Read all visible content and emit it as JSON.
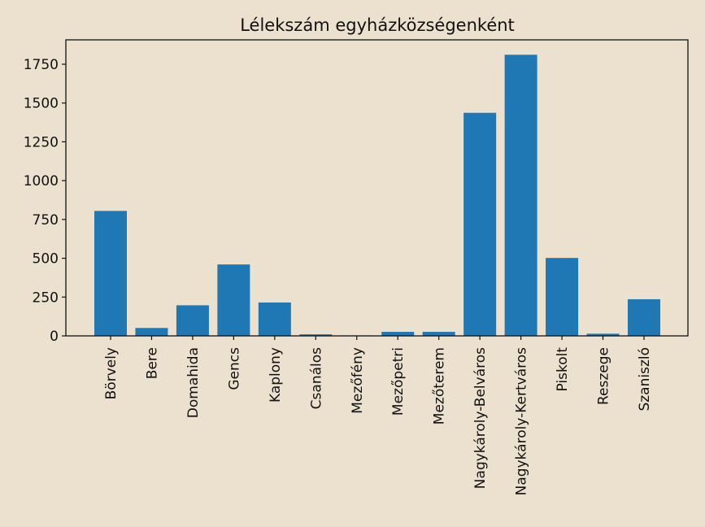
{
  "chart_data": {
    "type": "bar",
    "title": "Lélekszám egyházközségenként",
    "xlabel": "",
    "ylabel": "",
    "categories": [
      "Börvely",
      "Bere",
      "Domahida",
      "Gencs",
      "Kaplony",
      "Csanálos",
      "Mezőfény",
      "Mezőpetri",
      "Mezőterem",
      "Nagykároly-Belváros",
      "Nagykároly-Kertváros",
      "Piskolt",
      "Reszege",
      "Szaniszló"
    ],
    "values": [
      805,
      51,
      197,
      460,
      215,
      10,
      3,
      26,
      26,
      1437,
      1811,
      502,
      14,
      236
    ],
    "ylim": [
      0,
      1907
    ],
    "yticks": [
      0,
      250,
      500,
      750,
      1000,
      1250,
      1500,
      1750
    ],
    "grid": false,
    "legend": null,
    "bar_color": "#1f77b4",
    "background_color": "#EBE1CE",
    "xtick_rotation": 90
  }
}
